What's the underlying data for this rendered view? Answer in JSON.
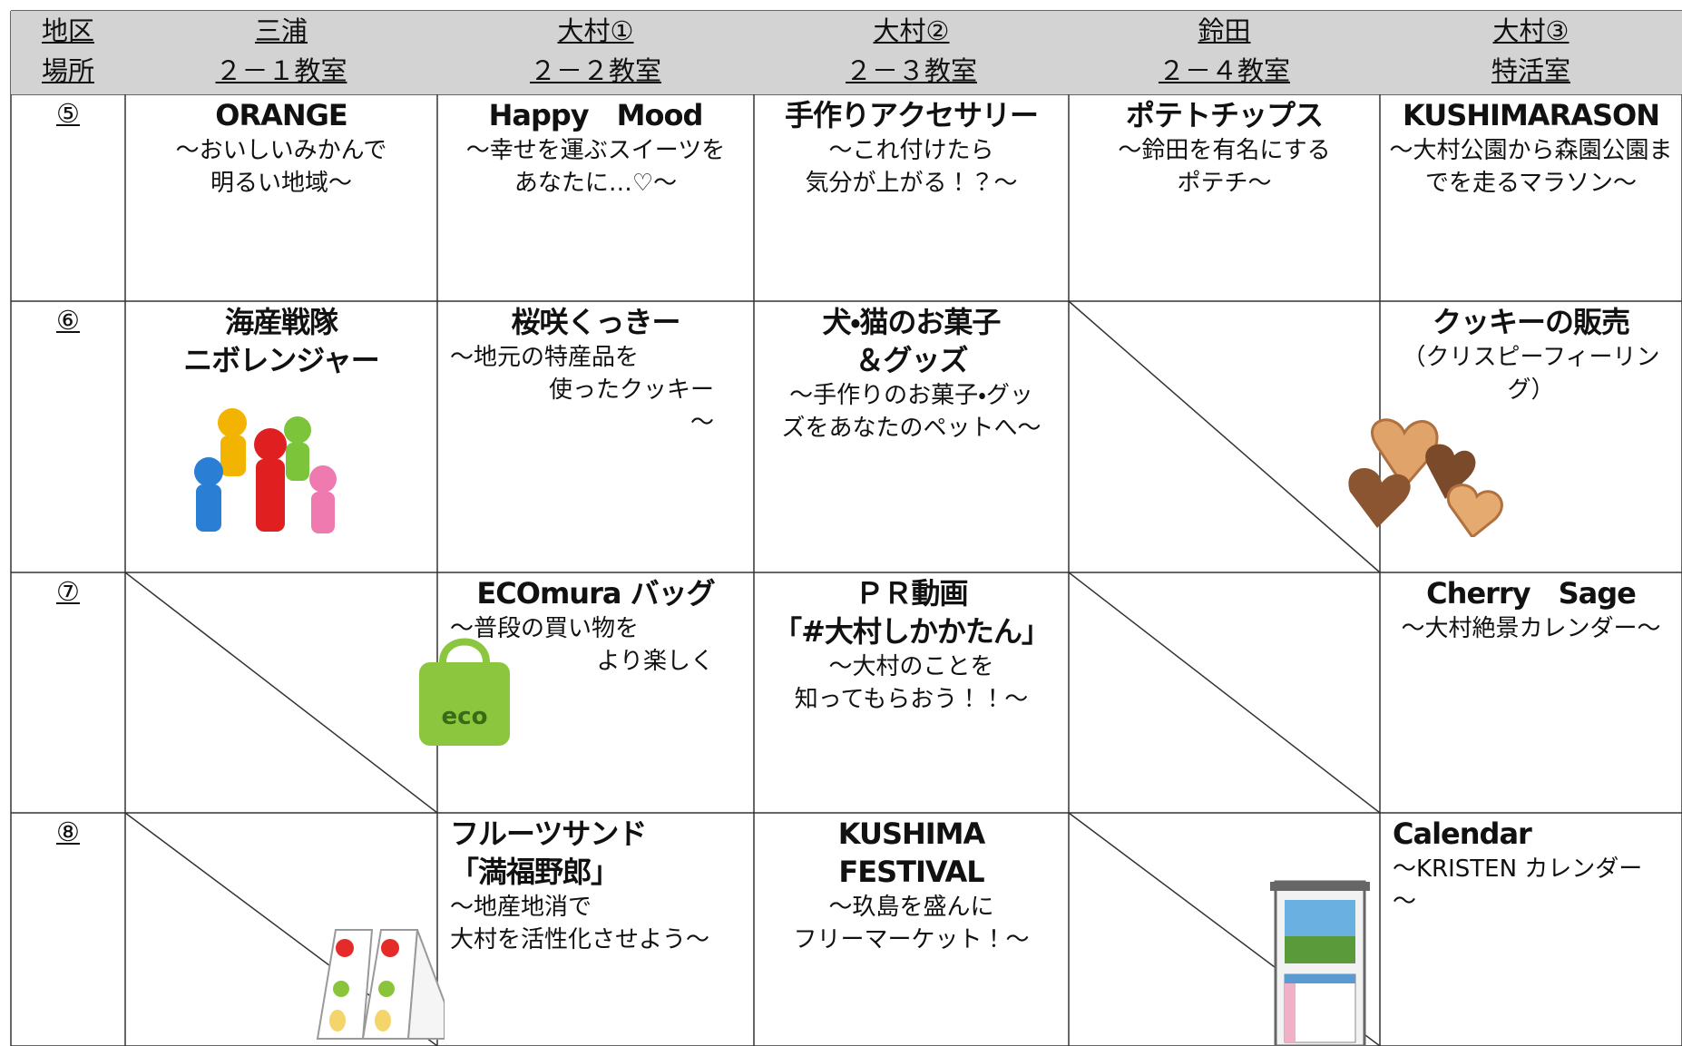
{
  "header": {
    "area_label": "地区",
    "room_label": "場所",
    "areas": [
      "三浦",
      "大村①",
      "大村②",
      "鈴田",
      "大村③"
    ],
    "rooms": [
      "２－１教室",
      "２－２教室",
      "２－３教室",
      "２－４教室",
      "特活室"
    ]
  },
  "rows": [
    {
      "number": "⑤",
      "cells": [
        {
          "title": [
            "ORANGE"
          ],
          "subtitle": [
            "～おいしいみかんで",
            "明るい地域～"
          ]
        },
        {
          "title": [
            "Happy　Mood"
          ],
          "subtitle": [
            "～幸せを運ぶスイーツを",
            "あなたに…♡～"
          ]
        },
        {
          "title": [
            "手作りアクセサリー"
          ],
          "subtitle": [
            "～これ付けたら",
            "気分が上がる！？～"
          ]
        },
        {
          "title": [
            "ポテトチップス"
          ],
          "subtitle": [
            "～鈴田を有名にする",
            "ポテチ～"
          ]
        },
        {
          "title": [
            "KUSHIMARASON"
          ],
          "subtitle": [
            "～大村公園から森園公園ま",
            "でを走るマラソン～"
          ]
        }
      ]
    },
    {
      "number": "⑥",
      "cells": [
        {
          "title": [
            "海産戦隊",
            "ニボレンジャー"
          ]
        },
        {
          "title": [
            "桜咲くっきー"
          ],
          "subtitle": [
            "～地元の特産品を",
            "使ったクッキー",
            "～"
          ]
        },
        {
          "title": [
            "犬・猫のお菓子",
            "＆グッズ"
          ],
          "subtitle": [
            "～手作りのお菓子・グッ",
            "ズをあなたのペットへ～"
          ]
        },
        null,
        {
          "title": [
            "クッキーの販売"
          ],
          "subtitle": [
            "（クリスピーフィーリン",
            "グ）"
          ]
        }
      ]
    },
    {
      "number": "⑦",
      "cells": [
        null,
        {
          "title": [
            "ECOmura バッグ"
          ],
          "subtitle": [
            "～普段の買い物を",
            "より楽しく"
          ]
        },
        {
          "title": [
            "ＰＲ動画",
            "「#大村しかかたん」"
          ],
          "subtitle": [
            "～大村のことを",
            "知ってもらおう！！～"
          ]
        },
        null,
        {
          "title": [
            "Cherry　Sage"
          ],
          "subtitle": [
            "～大村絶景カレンダー～"
          ]
        }
      ]
    },
    {
      "number": "⑧",
      "cells": [
        null,
        {
          "title": [
            "フルーツサンド",
            "「満福野郎」"
          ],
          "subtitle": [
            "～地産地消で",
            "大村を活性化させよう～"
          ]
        },
        {
          "title": [
            "KUSHIMA",
            "FESTIVAL"
          ],
          "subtitle": [
            "～玖島を盛んに",
            "フリーマーケット！～"
          ]
        },
        null,
        {
          "title": [
            "Calendar"
          ],
          "subtitle": [
            "～KRISTEN カレンダー",
            "～"
          ]
        }
      ]
    }
  ]
}
